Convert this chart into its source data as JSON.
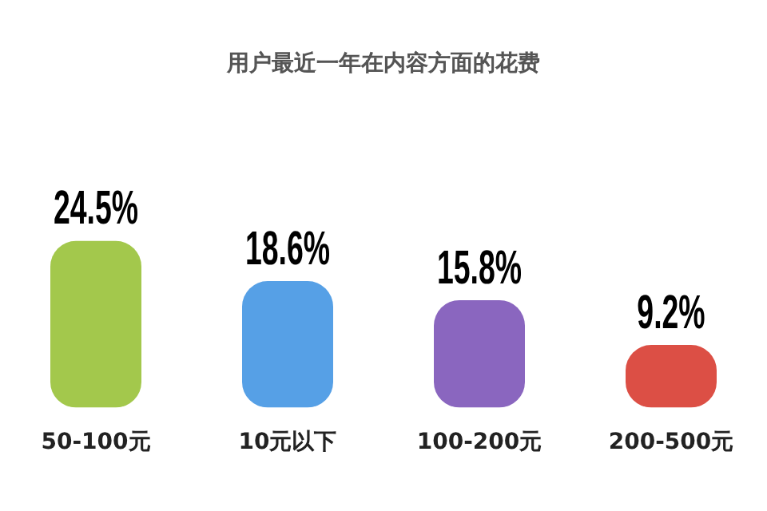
{
  "chart_data": {
    "type": "bar",
    "title": "用户最近一年在内容方面的花费",
    "categories": [
      "50-100元",
      "10元以下",
      "100-200元",
      "200-500元"
    ],
    "values": [
      24.5,
      18.6,
      15.8,
      9.2
    ],
    "value_labels": [
      "24.5%",
      "18.6%",
      "15.8%",
      "9.2%"
    ],
    "colors": [
      "#a3c84c",
      "#56a0e6",
      "#8a66bf",
      "#dc4f45"
    ],
    "grid": false,
    "legend": false,
    "tick_labels": "x"
  }
}
